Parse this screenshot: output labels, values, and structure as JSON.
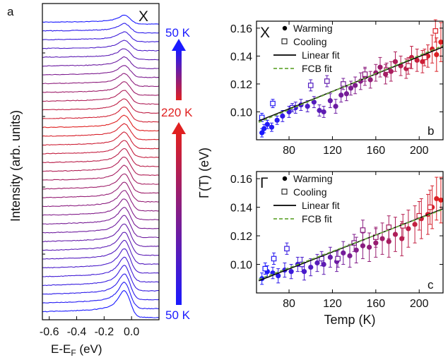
{
  "chart_data": [
    {
      "panel": "a",
      "type": "line",
      "title": "X",
      "xlabel": "E-E",
      "xlabel_sub": "F",
      "xlabel_unit": " (eV)",
      "ylabel": "Intensity (arb. units)",
      "xlim": [
        -0.65,
        0.2
      ],
      "xticks": [
        "-0.6",
        "-0.4",
        "-0.2",
        "0.0"
      ],
      "xtick_values": [
        -0.6,
        -0.4,
        -0.2,
        0.0
      ],
      "curve_count": 34,
      "peak_energy": -0.05,
      "temperature_sweep": {
        "top_label": "50 K",
        "middle_label": "220 K",
        "bottom_label": "50 K",
        "colors": {
          "cold": "#1a1aff",
          "hot": "#e02020"
        }
      }
    },
    {
      "panel": "b",
      "type": "scatter",
      "title": "X",
      "xlabel": "",
      "ylabel": "Γ(T) (eV)",
      "xlim": [
        50,
        222
      ],
      "ylim": [
        0.08,
        0.165
      ],
      "xticks": [
        "80",
        "120",
        "160",
        "200"
      ],
      "yticks": [
        "0.10",
        "0.12",
        "0.14",
        "0.16"
      ],
      "legend": {
        "position": "top-left",
        "entries": [
          "Warming",
          "Cooling",
          "Linear fit",
          "FCB fit"
        ]
      },
      "series": [
        {
          "name": "Warming",
          "marker": "filled-circle",
          "x": [
            55,
            57,
            60,
            64,
            69,
            74,
            80,
            86,
            91,
            97,
            103,
            108,
            112,
            118,
            123,
            128,
            133,
            137,
            141,
            146,
            150,
            155,
            160,
            164,
            169,
            174,
            178,
            183,
            188,
            193,
            198,
            203,
            208,
            212,
            216,
            220
          ],
          "y": [
            0.085,
            0.088,
            0.091,
            0.089,
            0.094,
            0.097,
            0.1,
            0.103,
            0.105,
            0.104,
            0.107,
            0.101,
            0.1,
            0.108,
            0.104,
            0.112,
            0.113,
            0.117,
            0.119,
            0.122,
            0.125,
            0.123,
            0.128,
            0.132,
            0.127,
            0.129,
            0.136,
            0.133,
            0.131,
            0.139,
            0.137,
            0.136,
            0.14,
            0.145,
            0.141,
            0.15
          ],
          "err": [
            0.003,
            0.003,
            0.003,
            0.003,
            0.003,
            0.004,
            0.004,
            0.004,
            0.004,
            0.004,
            0.004,
            0.004,
            0.004,
            0.005,
            0.005,
            0.005,
            0.005,
            0.005,
            0.006,
            0.006,
            0.006,
            0.006,
            0.006,
            0.007,
            0.007,
            0.007,
            0.007,
            0.007,
            0.007,
            0.008,
            0.008,
            0.008,
            0.008,
            0.01,
            0.012,
            0.014
          ]
        },
        {
          "name": "Cooling",
          "marker": "open-square",
          "x": [
            55,
            65,
            83,
            100,
            115,
            130,
            150,
            170,
            190,
            205,
            215
          ],
          "y": [
            0.096,
            0.106,
            0.103,
            0.119,
            0.122,
            0.12,
            0.127,
            0.13,
            0.133,
            0.139,
            0.158
          ],
          "err": [
            0.003,
            0.003,
            0.003,
            0.004,
            0.004,
            0.004,
            0.005,
            0.005,
            0.006,
            0.006,
            0.008
          ]
        },
        {
          "name": "Linear fit",
          "type": "line",
          "x": [
            52,
            222
          ],
          "y": [
            0.0935,
            0.1465
          ],
          "color": "#000000"
        },
        {
          "name": "FCB fit",
          "type": "line",
          "dashed": true,
          "x": [
            52,
            222
          ],
          "y": [
            0.0925,
            0.1475
          ],
          "color": "#6aaa3a"
        }
      ],
      "panel_label": "b"
    },
    {
      "panel": "c",
      "type": "scatter",
      "title": "Γ",
      "xlabel": "Temp (K)",
      "ylabel": "Γ(T) (eV)",
      "xlim": [
        50,
        222
      ],
      "ylim": [
        0.08,
        0.165
      ],
      "xticks": [
        "80",
        "120",
        "160",
        "200"
      ],
      "yticks": [
        "0.10",
        "0.12",
        "0.14",
        "0.16"
      ],
      "legend": {
        "position": "top-left",
        "entries": [
          "Warming",
          "Cooling",
          "Linear fit",
          "FCB fit"
        ]
      },
      "series": [
        {
          "name": "Warming",
          "marker": "filled-circle",
          "x": [
            55,
            60,
            65,
            70,
            76,
            82,
            88,
            94,
            100,
            106,
            112,
            118,
            124,
            130,
            136,
            142,
            148,
            154,
            160,
            166,
            172,
            178,
            184,
            190,
            196,
            202,
            208,
            212,
            216,
            220
          ],
          "y": [
            0.09,
            0.095,
            0.094,
            0.092,
            0.096,
            0.095,
            0.1,
            0.095,
            0.098,
            0.101,
            0.1,
            0.105,
            0.102,
            0.108,
            0.106,
            0.11,
            0.113,
            0.112,
            0.115,
            0.118,
            0.116,
            0.121,
            0.118,
            0.125,
            0.128,
            0.132,
            0.135,
            0.14,
            0.146,
            0.145
          ],
          "err": [
            0.004,
            0.004,
            0.004,
            0.005,
            0.005,
            0.005,
            0.005,
            0.006,
            0.006,
            0.006,
            0.007,
            0.007,
            0.007,
            0.008,
            0.008,
            0.009,
            0.009,
            0.01,
            0.01,
            0.011,
            0.011,
            0.012,
            0.012,
            0.013,
            0.013,
            0.014,
            0.014,
            0.015,
            0.015,
            0.016
          ]
        },
        {
          "name": "Cooling",
          "marker": "open-square",
          "x": [
            58,
            66,
            78,
            92,
            110,
            125,
            140,
            148,
            160,
            172,
            185,
            200,
            210
          ],
          "y": [
            0.097,
            0.104,
            0.111,
            0.1,
            0.104,
            0.104,
            0.115,
            0.124,
            0.119,
            0.126,
            0.127,
            0.134,
            0.14
          ],
          "err": [
            0.004,
            0.004,
            0.004,
            0.005,
            0.005,
            0.006,
            0.006,
            0.007,
            0.007,
            0.008,
            0.008,
            0.01,
            0.012
          ]
        },
        {
          "name": "Linear fit",
          "type": "line",
          "x": [
            52,
            222
          ],
          "y": [
            0.0885,
            0.139
          ],
          "color": "#000000"
        },
        {
          "name": "FCB fit",
          "type": "line",
          "dashed": true,
          "x": [
            52,
            222
          ],
          "y": [
            0.0895,
            0.1385
          ],
          "color": "#6aaa3a"
        }
      ],
      "panel_label": "c"
    }
  ]
}
